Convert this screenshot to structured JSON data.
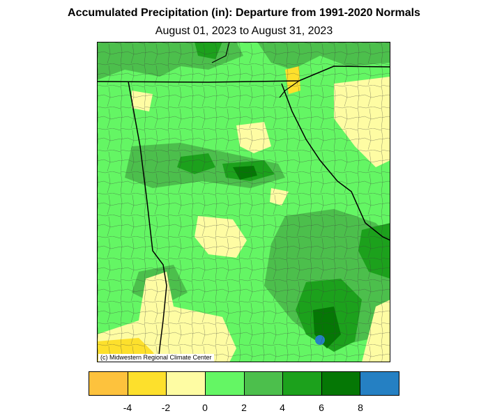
{
  "title": "Accumulated Precipitation (in): Departure from 1991-2020 Normals",
  "subtitle": "August 01, 2023 to August 31, 2023",
  "credit": "(c) Midwestern Regional Climate Center",
  "legend": {
    "bins": [
      {
        "color": "#fdc23d"
      },
      {
        "color": "#fde02c"
      },
      {
        "color": "#fefca3"
      },
      {
        "color": "#64f664"
      },
      {
        "color": "#4cbf4c"
      },
      {
        "color": "#1ca11c"
      },
      {
        "color": "#057705"
      },
      {
        "color": "#2580c3"
      }
    ],
    "ticks": [
      "-4",
      "-2",
      "0",
      "2",
      "4",
      "6",
      "8"
    ]
  },
  "colors": {
    "dry_mid": "#fde02c",
    "dry_light": "#fefca3",
    "wet_light": "#64f664",
    "wet_mid": "#4cbf4c",
    "wet_high": "#1ca11c",
    "wet_very_high": "#057705",
    "wet_extreme": "#2580c3"
  }
}
